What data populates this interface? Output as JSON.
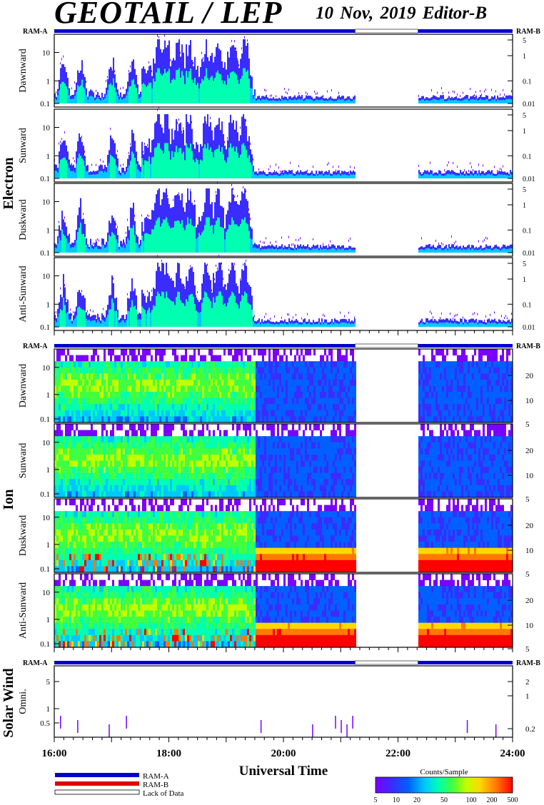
{
  "header": {
    "title": "GEOTAIL / LEP",
    "date_editor": "10 Nov, 2019   Editor-B"
  },
  "colors": {
    "ram_a": "#0000c8",
    "ram_b": "#e00000",
    "frame": "#000000",
    "colormap": [
      "#7a00ff",
      "#3a2cff",
      "#0060ff",
      "#00c8ff",
      "#00ffb0",
      "#40ff40",
      "#c0ff00",
      "#ffd800",
      "#ff7a00",
      "#ff0000"
    ]
  },
  "chart_data": [
    {
      "type": "heatmap",
      "group": "Electron",
      "title": "",
      "xlabel": "Universal Time",
      "xlim": [
        "16:00",
        "24:00"
      ],
      "panels": [
        {
          "name": "Dawnward",
          "yticks_left": [
            "10",
            "1",
            "0.1"
          ],
          "yticks_right": [
            "5",
            "1",
            "0.1",
            "0.01"
          ]
        },
        {
          "name": "Sunward",
          "yticks_left": [
            "10",
            "1",
            "0.1"
          ],
          "yticks_right": [
            "5",
            "1",
            "0.1",
            "0.01"
          ]
        },
        {
          "name": "Duskward",
          "yticks_left": [
            "10",
            "1",
            "0.1"
          ],
          "yticks_right": [
            "5",
            "1",
            "0.1",
            "0.01"
          ]
        },
        {
          "name": "Anti-Sunward",
          "yticks_left": [
            "10",
            "1",
            "0.1"
          ],
          "yticks_right": [
            "5",
            "1",
            "0.1",
            "0.01"
          ]
        }
      ],
      "data_gap": [
        "21:15",
        "22:20"
      ],
      "bursts_hours": [
        16.15,
        16.45,
        17.0,
        17.35,
        17.8,
        17.95,
        18.15,
        18.35,
        18.65,
        18.85,
        19.1,
        19.3
      ]
    },
    {
      "type": "heatmap",
      "group": "Ion",
      "panels": [
        {
          "name": "Dawnward",
          "yticks_left": [
            "10",
            "1",
            "0.1"
          ],
          "yticks_right": [
            "20",
            "10",
            "5"
          ]
        },
        {
          "name": "Sunward",
          "yticks_left": [
            "10",
            "1",
            "0.1"
          ],
          "yticks_right": [
            "20",
            "10",
            "5"
          ]
        },
        {
          "name": "Duskward",
          "yticks_left": [
            "10",
            "1",
            "0.1"
          ],
          "yticks_right": [
            "20",
            "10",
            "5"
          ]
        },
        {
          "name": "Anti-Sunward",
          "yticks_left": [
            "10",
            "1",
            "0.1"
          ],
          "yticks_right": [
            "20",
            "10",
            "5"
          ]
        }
      ],
      "data_gap": [
        "21:15",
        "22:20"
      ]
    },
    {
      "type": "heatmap",
      "group": "Solar Wind",
      "panels": [
        {
          "name": "Omni.",
          "yticks_left": [
            "5",
            "1",
            "0.5"
          ],
          "yticks_right": [
            "2",
            "1",
            "0.2"
          ]
        }
      ],
      "data_gap": [
        "21:15",
        "22:20"
      ]
    }
  ],
  "ram": {
    "left": "RAM-A",
    "right": "RAM-B"
  },
  "xaxis": {
    "tick_labels": [
      "16:00",
      "18:00",
      "20:00",
      "22:00",
      "24:00"
    ],
    "label": "Universal Time"
  },
  "legend": {
    "ram_a": "RAM-A",
    "ram_b": "RAM-B",
    "lack": "Lack of Data"
  },
  "colorbar": {
    "title": "Counts/Sample",
    "ticks": [
      "5",
      "10",
      "20",
      "50",
      "100",
      "200",
      "500"
    ]
  }
}
